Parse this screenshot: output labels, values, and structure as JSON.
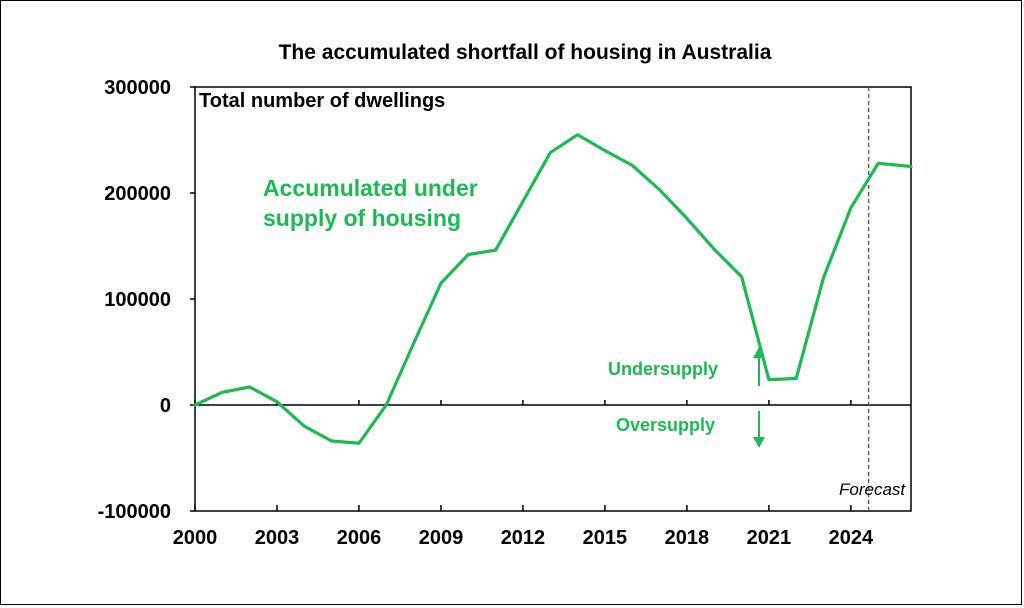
{
  "chart_data": {
    "type": "line",
    "title": "The accumulated shortfall of housing in Australia",
    "ylabel": "Total number of dwellings",
    "xlim": [
      2000,
      2026.2
    ],
    "ylim": [
      -100000,
      300000
    ],
    "x_ticks": [
      2000,
      2003,
      2006,
      2009,
      2012,
      2015,
      2018,
      2021,
      2024
    ],
    "y_ticks": [
      -100000,
      0,
      100000,
      200000,
      300000
    ],
    "x_tick_labels": [
      "2000",
      "2003",
      "2006",
      "2009",
      "2012",
      "2015",
      "2018",
      "2021",
      "2024"
    ],
    "y_tick_labels": [
      "-100000",
      "0",
      "100000",
      "200000",
      "300000"
    ],
    "grid": false,
    "series": [
      {
        "name": "Accumulated under supply of housing",
        "color": "#1db954",
        "x": [
          2000,
          2001,
          2002,
          2003,
          2004,
          2005,
          2006,
          2007,
          2008,
          2009,
          2010,
          2011,
          2012,
          2013,
          2014,
          2015,
          2016,
          2017,
          2018,
          2019,
          2020,
          2021,
          2022,
          2023,
          2024,
          2025,
          2026.2
        ],
        "y": [
          0,
          12000,
          17000,
          3000,
          -20000,
          -34000,
          -36000,
          0,
          58000,
          115000,
          142000,
          146000,
          192000,
          238000,
          255000,
          240000,
          226000,
          203000,
          176000,
          147000,
          121000,
          24000,
          25000,
          120000,
          186000,
          228000,
          225000
        ]
      }
    ],
    "series_label": [
      "Accumulated under",
      "supply of housing"
    ],
    "forecast": {
      "x": 2024.65,
      "label": "Forecast"
    },
    "annotations": {
      "undersupply": "Undersupply",
      "oversupply": "Oversupply"
    },
    "colors": {
      "series": "#1db954",
      "axis": "#000000",
      "forecast_line": "#555555"
    }
  }
}
